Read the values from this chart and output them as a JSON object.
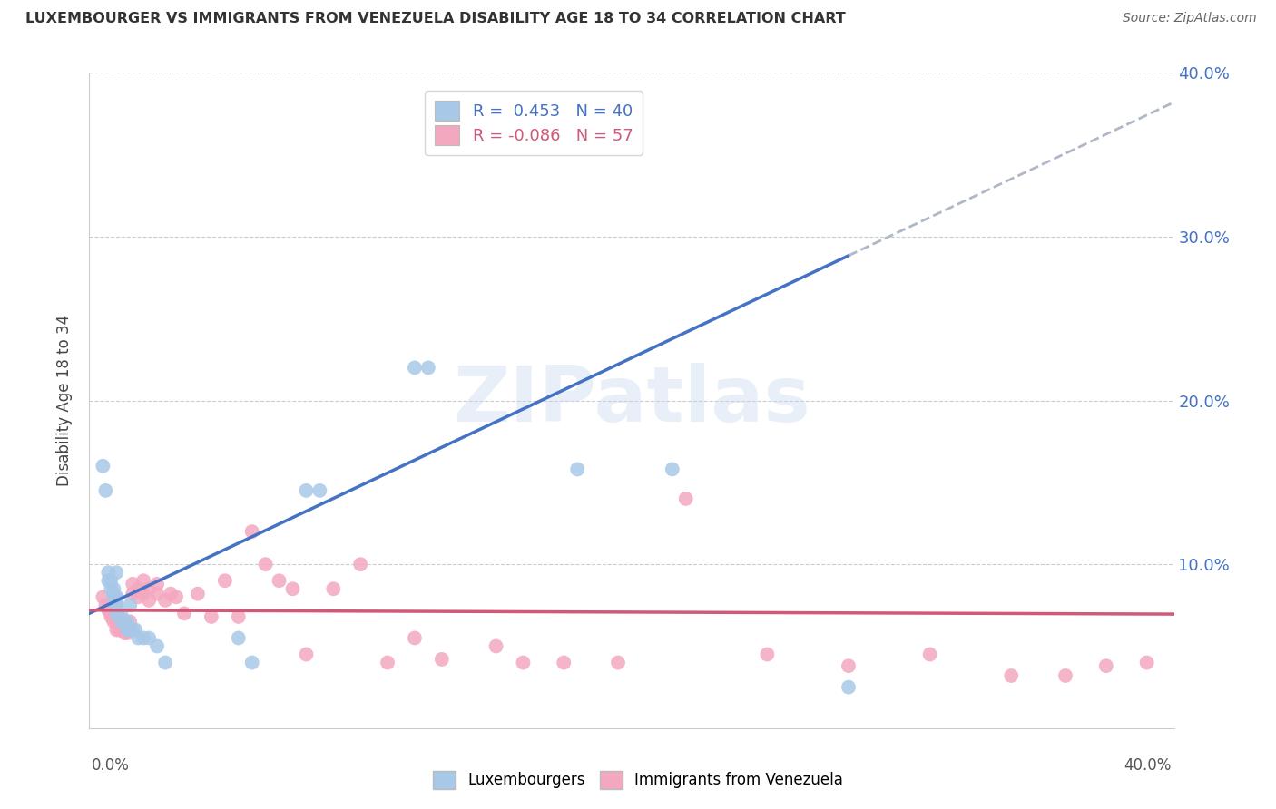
{
  "title": "LUXEMBOURGER VS IMMIGRANTS FROM VENEZUELA DISABILITY AGE 18 TO 34 CORRELATION CHART",
  "source": "Source: ZipAtlas.com",
  "ylabel": "Disability Age 18 to 34",
  "xlim": [
    0.0,
    0.4
  ],
  "ylim": [
    0.0,
    0.4
  ],
  "yticks": [
    0.0,
    0.1,
    0.2,
    0.3,
    0.4
  ],
  "xticks": [
    0.0,
    0.1,
    0.2,
    0.3,
    0.4
  ],
  "grid_color": "#cccccc",
  "watermark": "ZIPatlas",
  "color_blue": "#a8c8e8",
  "color_pink": "#f4a8c0",
  "trendline_blue": "#4472c4",
  "trendline_pink": "#d05878",
  "trendline_dash": "#b0b8c8",
  "R_blue": 0.453,
  "N_blue": 40,
  "R_pink": -0.086,
  "N_pink": 57,
  "lux_x": [
    0.005,
    0.006,
    0.007,
    0.007,
    0.008,
    0.008,
    0.009,
    0.009,
    0.009,
    0.01,
    0.01,
    0.01,
    0.01,
    0.01,
    0.01,
    0.011,
    0.012,
    0.012,
    0.013,
    0.013,
    0.014,
    0.014,
    0.015,
    0.015,
    0.016,
    0.017,
    0.018,
    0.02,
    0.022,
    0.025,
    0.028,
    0.055,
    0.06,
    0.08,
    0.085,
    0.12,
    0.125,
    0.18,
    0.215,
    0.28
  ],
  "lux_y": [
    0.16,
    0.145,
    0.095,
    0.09,
    0.09,
    0.085,
    0.085,
    0.082,
    0.08,
    0.095,
    0.08,
    0.078,
    0.075,
    0.075,
    0.07,
    0.068,
    0.068,
    0.065,
    0.065,
    0.065,
    0.065,
    0.06,
    0.075,
    0.06,
    0.06,
    0.06,
    0.055,
    0.055,
    0.055,
    0.05,
    0.04,
    0.055,
    0.04,
    0.145,
    0.145,
    0.22,
    0.22,
    0.158,
    0.158,
    0.025
  ],
  "ven_x": [
    0.005,
    0.006,
    0.007,
    0.008,
    0.008,
    0.009,
    0.009,
    0.01,
    0.01,
    0.01,
    0.01,
    0.011,
    0.012,
    0.013,
    0.014,
    0.015,
    0.015,
    0.016,
    0.016,
    0.018,
    0.018,
    0.02,
    0.02,
    0.022,
    0.022,
    0.025,
    0.025,
    0.028,
    0.03,
    0.032,
    0.035,
    0.04,
    0.045,
    0.05,
    0.055,
    0.06,
    0.065,
    0.07,
    0.075,
    0.08,
    0.09,
    0.1,
    0.11,
    0.12,
    0.13,
    0.15,
    0.16,
    0.175,
    0.195,
    0.22,
    0.25,
    0.28,
    0.31,
    0.34,
    0.36,
    0.375,
    0.39
  ],
  "ven_y": [
    0.08,
    0.075,
    0.072,
    0.07,
    0.068,
    0.068,
    0.065,
    0.08,
    0.075,
    0.065,
    0.06,
    0.06,
    0.06,
    0.058,
    0.058,
    0.065,
    0.06,
    0.088,
    0.082,
    0.085,
    0.08,
    0.09,
    0.082,
    0.085,
    0.078,
    0.088,
    0.082,
    0.078,
    0.082,
    0.08,
    0.07,
    0.082,
    0.068,
    0.09,
    0.068,
    0.12,
    0.1,
    0.09,
    0.085,
    0.045,
    0.085,
    0.1,
    0.04,
    0.055,
    0.042,
    0.05,
    0.04,
    0.04,
    0.04,
    0.14,
    0.045,
    0.038,
    0.045,
    0.032,
    0.032,
    0.038,
    0.04
  ],
  "figsize": [
    14.06,
    8.92
  ],
  "dpi": 100,
  "blue_line_solid_end": 0.28,
  "blue_line_dash_start": 0.28,
  "blue_line_dash_end": 0.4
}
